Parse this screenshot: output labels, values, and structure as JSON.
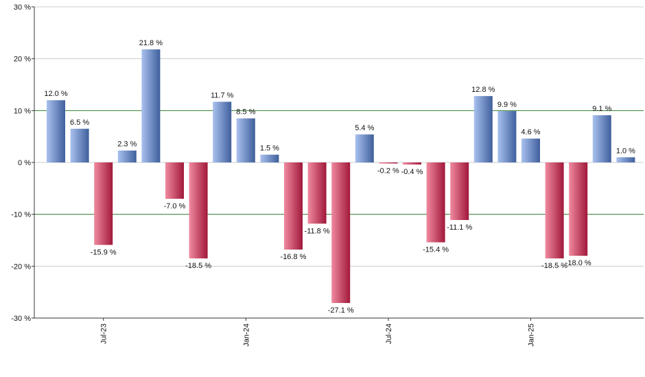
{
  "chart_data": {
    "type": "bar",
    "title": "",
    "xlabel": "",
    "ylabel": "",
    "ylim": [
      -30,
      30
    ],
    "y_ticks": [
      30,
      20,
      10,
      0,
      -10,
      -20,
      -30
    ],
    "y_tick_labels": [
      "30 %",
      "20 %",
      "10 %",
      "0 %",
      "-10 %",
      "-20 %",
      "-30 %"
    ],
    "reference_lines": [
      10,
      -10
    ],
    "x_tick_labels": [
      {
        "label": "Jul-23",
        "index": 2
      },
      {
        "label": "Jan-24",
        "index": 8
      },
      {
        "label": "Jul-24",
        "index": 14
      },
      {
        "label": "Jan-25",
        "index": 20
      }
    ],
    "values": [
      12.0,
      6.5,
      -15.9,
      2.3,
      21.8,
      -7.0,
      -18.5,
      11.7,
      8.5,
      1.5,
      -16.8,
      -11.8,
      -27.1,
      5.4,
      -0.2,
      -0.4,
      -15.4,
      -11.1,
      12.8,
      9.9,
      4.6,
      -18.5,
      -18.0,
      9.1,
      1.0
    ],
    "labels": [
      "12.0 %",
      "6.5 %",
      "-15.9 %",
      "2.3 %",
      "21.8 %",
      "-7.0 %",
      "-18.5 %",
      "11.7 %",
      "8.5 %",
      "1.5 %",
      "-16.8 %",
      "-11.8 %",
      "-27.1 %",
      "5.4 %",
      "-0.2 %",
      "-0.4 %",
      "-15.4 %",
      "-11.1 %",
      "12.8 %",
      "9.9 %",
      "4.6 %",
      "-18.5 %",
      "-18.0 %",
      "9.1 %",
      "1.0 %"
    ],
    "grid": true,
    "colors": {
      "positive_light": "#a9c1ef",
      "positive_dark": "#3f5f9c",
      "negative_light": "#f08aa0",
      "negative_dark": "#a1183a",
      "grid": "#cccccc",
      "reference_line": "#2e7d2e",
      "axis": "#333333"
    }
  }
}
